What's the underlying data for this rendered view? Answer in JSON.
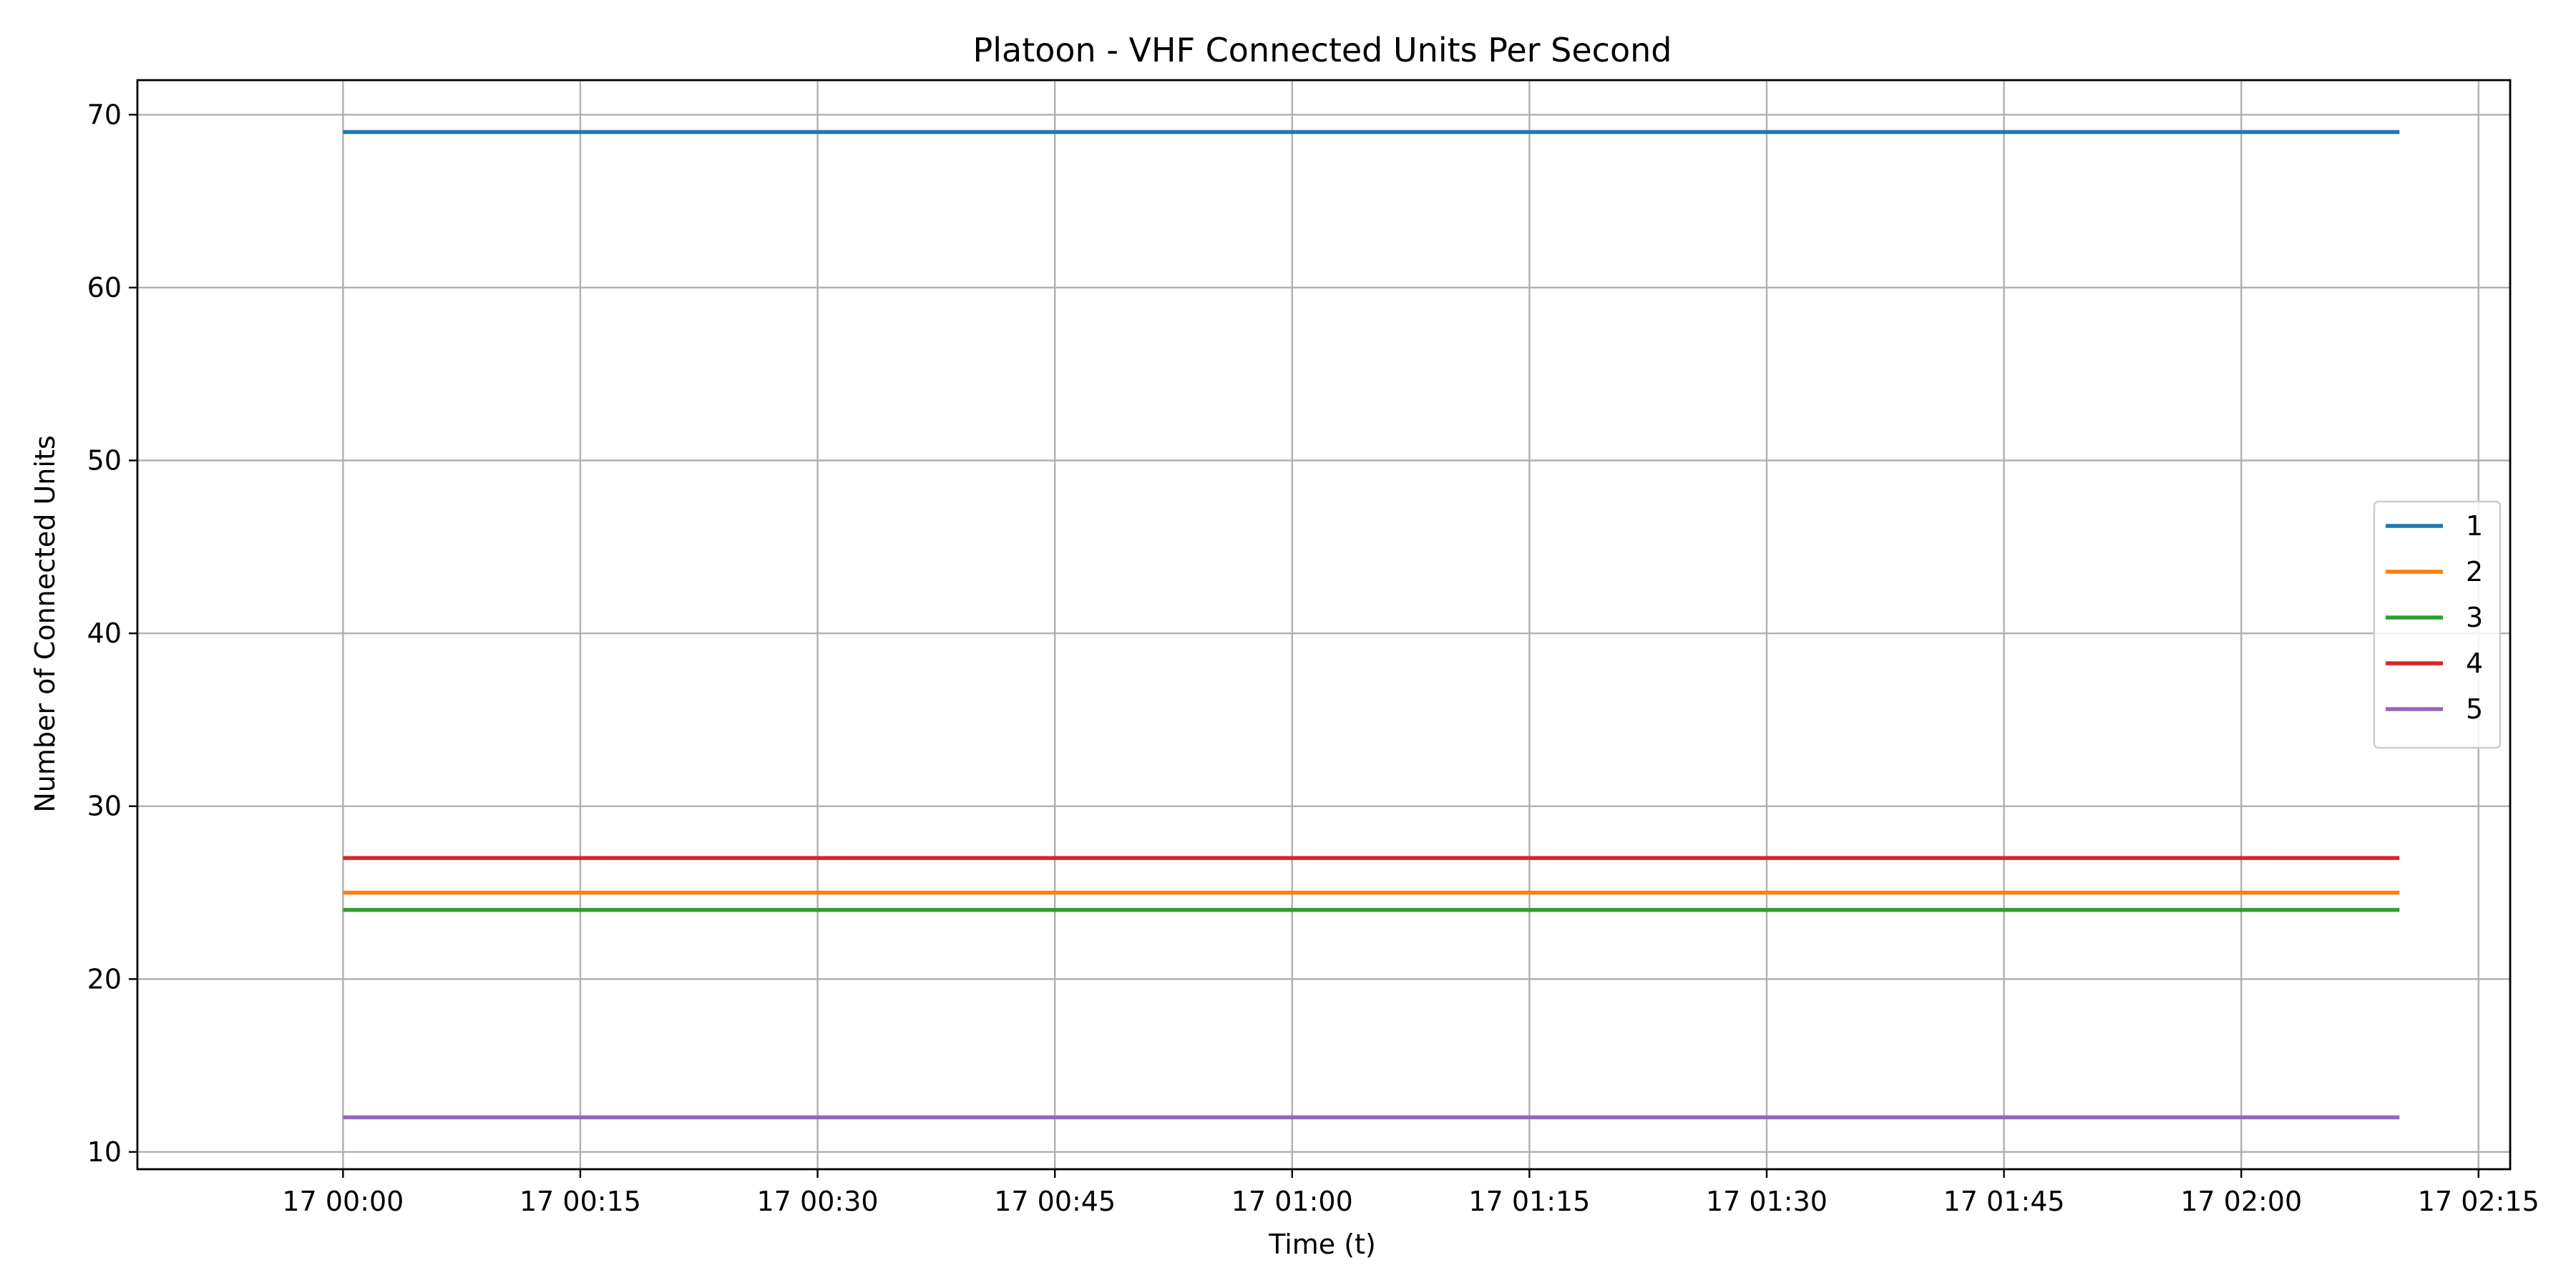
{
  "chart_data": {
    "type": "line",
    "title": "Platoon - VHF Connected Units Per Second",
    "xlabel": "Time (t)",
    "ylabel": "Number of Connected Units",
    "x_range": [
      "17 00:00",
      "17 02:10"
    ],
    "xlim": [
      "16 23:47",
      "17 02:17"
    ],
    "ylim": [
      9,
      72
    ],
    "x_ticks": [
      "17 00:00",
      "17 00:15",
      "17 00:30",
      "17 00:45",
      "17 01:00",
      "17 01:15",
      "17 01:30",
      "17 01:45",
      "17 02:00",
      "17 02:15"
    ],
    "y_ticks": [
      10,
      20,
      30,
      40,
      50,
      60,
      70
    ],
    "grid": true,
    "legend_position": "center-right",
    "series": [
      {
        "name": "1",
        "color": "#1f77b4",
        "x": [
          "17 00:00",
          "17 02:10"
        ],
        "values": [
          69,
          69
        ]
      },
      {
        "name": "2",
        "color": "#ff7f0e",
        "x": [
          "17 00:00",
          "17 02:10"
        ],
        "values": [
          25,
          25
        ]
      },
      {
        "name": "3",
        "color": "#2ca02c",
        "x": [
          "17 00:00",
          "17 02:10"
        ],
        "values": [
          24,
          24
        ]
      },
      {
        "name": "4",
        "color": "#d62728",
        "x": [
          "17 00:00",
          "17 02:10"
        ],
        "values": [
          27,
          27
        ]
      },
      {
        "name": "5",
        "color": "#9467bd",
        "x": [
          "17 00:00",
          "17 02:10"
        ],
        "values": [
          12,
          12
        ]
      }
    ]
  }
}
